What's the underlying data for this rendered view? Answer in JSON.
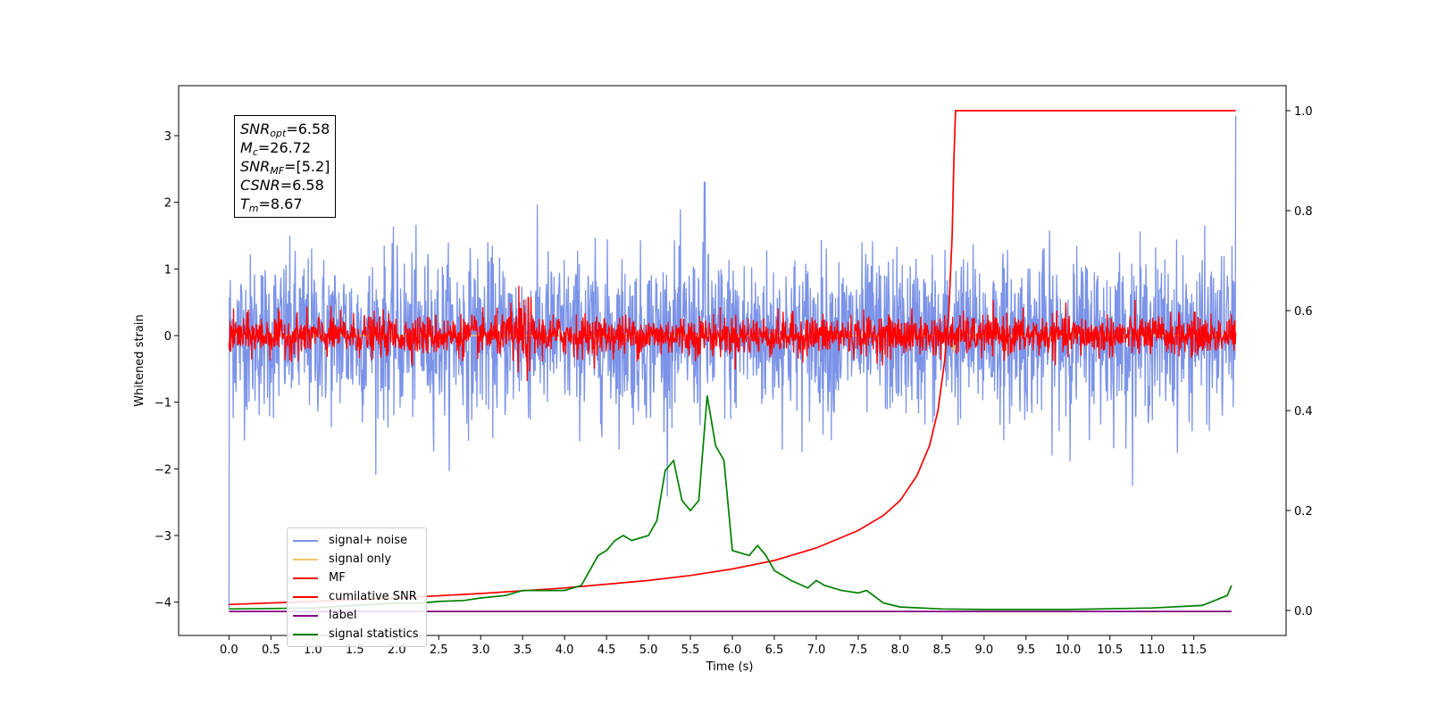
{
  "chart_data": {
    "type": "line",
    "xlabel": "Time (s)",
    "ylabel": "Whitened strain",
    "xlim": [
      -0.6,
      12.6
    ],
    "ylim": [
      -4.5,
      3.75
    ],
    "y2lim": [
      -0.05,
      1.05
    ],
    "x_ticks": [
      0.0,
      0.5,
      1.0,
      1.5,
      2.0,
      2.5,
      3.0,
      3.5,
      4.0,
      4.5,
      5.0,
      5.5,
      6.0,
      6.5,
      7.0,
      7.5,
      8.0,
      8.5,
      9.0,
      9.5,
      10.0,
      10.5,
      11.0,
      11.5
    ],
    "x_tick_labels": [
      "0.0",
      "0.5",
      "1.0",
      "1.5",
      "2.0",
      "2.5",
      "3.0",
      "3.5",
      "4.0",
      "4.5",
      "5.0",
      "5.5",
      "6.0",
      "6.5",
      "7.0",
      "7.5",
      "8.0",
      "8.5",
      "9.0",
      "9.5",
      "10.0",
      "10.5",
      "11.0",
      "11.5"
    ],
    "y_ticks": [
      3,
      2,
      1,
      0,
      -1,
      -2,
      -3,
      -4
    ],
    "y_tick_labels": [
      "3",
      "2",
      "1",
      "0",
      "−1",
      "−2",
      "−3",
      "−4"
    ],
    "y2_ticks": [
      1.0,
      0.8,
      0.6,
      0.4,
      0.2,
      0.0
    ],
    "y2_tick_labels": [
      "1.0",
      "0.8",
      "0.6",
      "0.4",
      "0.2",
      "0.0"
    ],
    "x_end": 12.0,
    "series": [
      {
        "name": "signal+ noise",
        "color": "#7b93e8",
        "axis": "left",
        "kind": "noise",
        "amplitude": 0.6,
        "spike_peak": 2.3,
        "spike_at": 5.67
      },
      {
        "name": "signal only",
        "color": "#f2c46a",
        "axis": "left",
        "kind": "chirp_flat"
      },
      {
        "name": "MF",
        "color": "#ff0000",
        "axis": "left",
        "kind": "noise",
        "amplitude": 0.15
      },
      {
        "name": "cumilative SNR",
        "color": "#ff0000",
        "axis": "right",
        "points": [
          [
            0.0,
            0.012
          ],
          [
            1.0,
            0.018
          ],
          [
            2.0,
            0.025
          ],
          [
            3.0,
            0.034
          ],
          [
            4.0,
            0.045
          ],
          [
            5.0,
            0.06
          ],
          [
            5.5,
            0.07
          ],
          [
            6.0,
            0.083
          ],
          [
            6.5,
            0.1
          ],
          [
            7.0,
            0.125
          ],
          [
            7.5,
            0.16
          ],
          [
            7.8,
            0.19
          ],
          [
            8.0,
            0.22
          ],
          [
            8.2,
            0.27
          ],
          [
            8.35,
            0.33
          ],
          [
            8.45,
            0.4
          ],
          [
            8.53,
            0.5
          ],
          [
            8.58,
            0.6
          ],
          [
            8.62,
            0.75
          ],
          [
            8.64,
            0.9
          ],
          [
            8.66,
            1.0
          ],
          [
            12.0,
            1.0
          ]
        ]
      },
      {
        "name": "label",
        "color": "#800080",
        "axis": "left",
        "points": [
          [
            0.0,
            -4.14
          ],
          [
            11.95,
            -4.14
          ]
        ]
      },
      {
        "name": "signal statistics",
        "color": "#008000",
        "axis": "right",
        "points": [
          [
            0.0,
            0.003
          ],
          [
            0.5,
            0.004
          ],
          [
            1.0,
            0.005
          ],
          [
            1.5,
            0.01
          ],
          [
            2.0,
            0.015
          ],
          [
            2.3,
            0.015
          ],
          [
            2.5,
            0.018
          ],
          [
            2.8,
            0.02
          ],
          [
            3.0,
            0.025
          ],
          [
            3.3,
            0.03
          ],
          [
            3.5,
            0.04
          ],
          [
            3.8,
            0.04
          ],
          [
            4.0,
            0.04
          ],
          [
            4.2,
            0.05
          ],
          [
            4.4,
            0.11
          ],
          [
            4.5,
            0.12
          ],
          [
            4.6,
            0.14
          ],
          [
            4.7,
            0.15
          ],
          [
            4.8,
            0.14
          ],
          [
            5.0,
            0.15
          ],
          [
            5.1,
            0.18
          ],
          [
            5.2,
            0.28
          ],
          [
            5.3,
            0.3
          ],
          [
            5.4,
            0.22
          ],
          [
            5.5,
            0.2
          ],
          [
            5.6,
            0.22
          ],
          [
            5.7,
            0.43
          ],
          [
            5.8,
            0.33
          ],
          [
            5.9,
            0.3
          ],
          [
            6.0,
            0.12
          ],
          [
            6.2,
            0.11
          ],
          [
            6.3,
            0.13
          ],
          [
            6.4,
            0.11
          ],
          [
            6.5,
            0.08
          ],
          [
            6.7,
            0.06
          ],
          [
            6.9,
            0.045
          ],
          [
            7.0,
            0.06
          ],
          [
            7.1,
            0.05
          ],
          [
            7.3,
            0.04
          ],
          [
            7.5,
            0.035
          ],
          [
            7.6,
            0.04
          ],
          [
            7.8,
            0.015
          ],
          [
            8.0,
            0.007
          ],
          [
            8.5,
            0.003
          ],
          [
            9.0,
            0.002
          ],
          [
            10.0,
            0.002
          ],
          [
            11.0,
            0.005
          ],
          [
            11.6,
            0.01
          ],
          [
            11.9,
            0.03
          ],
          [
            11.95,
            0.05
          ]
        ]
      }
    ],
    "annotation": {
      "snr_opt": {
        "sym": "SNR",
        "sub": "opt",
        "value": "=6.58"
      },
      "mc": {
        "sym": "M",
        "sub": "c",
        "value": "=26.72"
      },
      "snr_mf": {
        "sym": "SNR",
        "sub": "MF",
        "value": "=[5.2]"
      },
      "csnr": {
        "sym": "CSNR",
        "value": "=6.58"
      },
      "tm": {
        "sym": "T",
        "sub": "m",
        "value": "=8.67"
      }
    },
    "legend": {
      "position": "lower-left",
      "items": [
        {
          "label": "signal+ noise",
          "color": "#7b93e8"
        },
        {
          "label": "signal only",
          "color": "#f2c46a"
        },
        {
          "label": "MF",
          "color": "#ff0000"
        },
        {
          "label": "cumilative SNR",
          "color": "#ff0000"
        },
        {
          "label": "label",
          "color": "#800080"
        },
        {
          "label": "signal statistics",
          "color": "#008000"
        }
      ]
    }
  }
}
